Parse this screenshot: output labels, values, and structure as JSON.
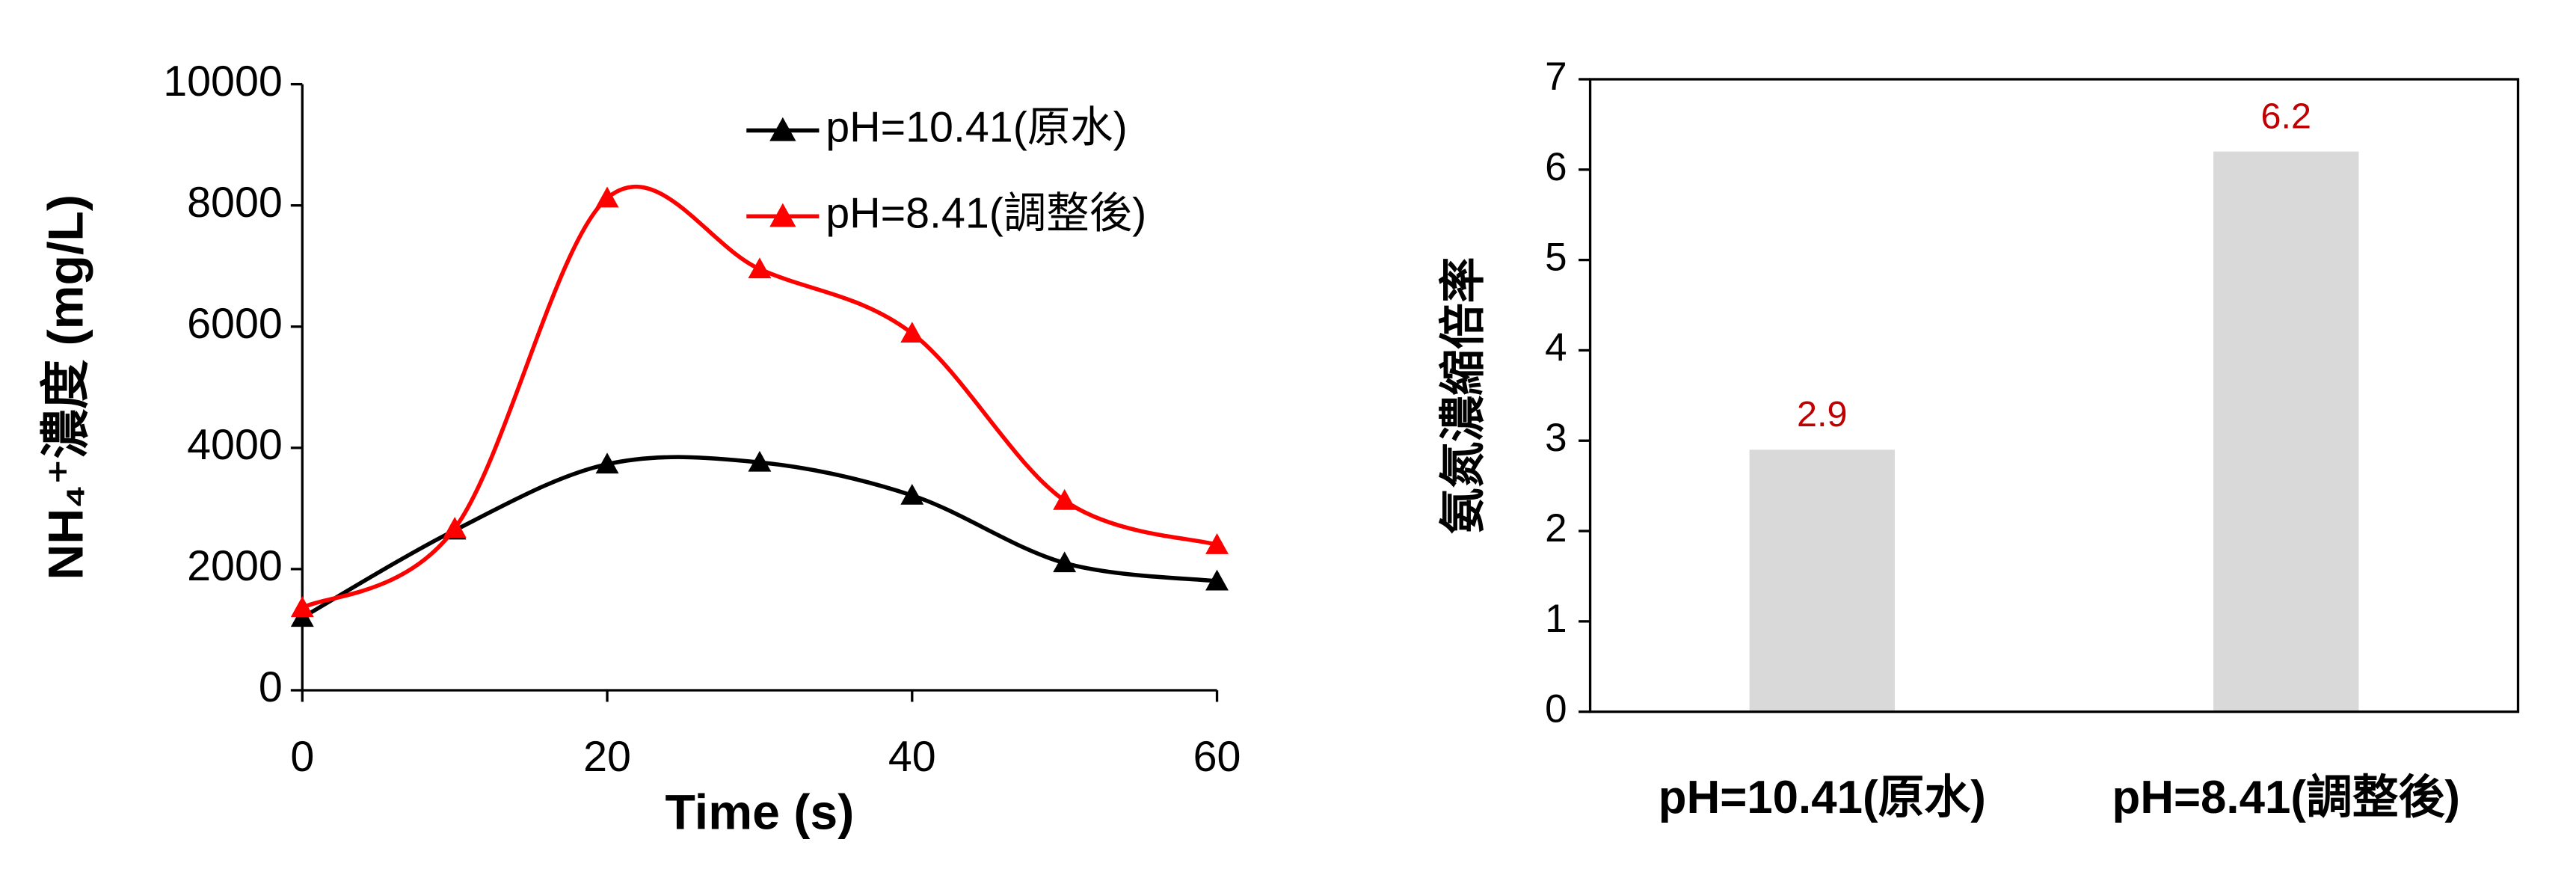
{
  "chart_data": [
    {
      "type": "line",
      "x_label": "Time (s)",
      "y_label": "NH₄⁺濃度 (mg/L)",
      "x": [
        0,
        10,
        20,
        30,
        40,
        50,
        60
      ],
      "xlim": [
        0,
        60
      ],
      "xticks": [
        0,
        20,
        40,
        60
      ],
      "ylim": [
        0,
        10000
      ],
      "yticks": [
        0,
        2000,
        4000,
        6000,
        8000,
        10000
      ],
      "legend": "top-right",
      "smooth": true,
      "series": [
        {
          "name": "pH=10.41(原水)",
          "color": "#000000",
          "values": [
            1200,
            2640,
            3730,
            3760,
            3215,
            2100,
            1800
          ]
        },
        {
          "name": "pH=8.41(調整後)",
          "color": "#ff0000",
          "values": [
            1360,
            2670,
            8120,
            6950,
            5890,
            3130,
            2400
          ]
        }
      ]
    },
    {
      "type": "bar",
      "y_label": "氨氮濃縮倍率",
      "categories": [
        "pH=10.41(原水)",
        "pH=8.41(調整後)"
      ],
      "values": [
        2.9,
        6.2
      ],
      "color": "#d9d9d9",
      "label_color": "#c00000",
      "ylim": [
        0,
        7
      ],
      "yticks": [
        0,
        1,
        2,
        3,
        4,
        5,
        6,
        7
      ]
    }
  ]
}
